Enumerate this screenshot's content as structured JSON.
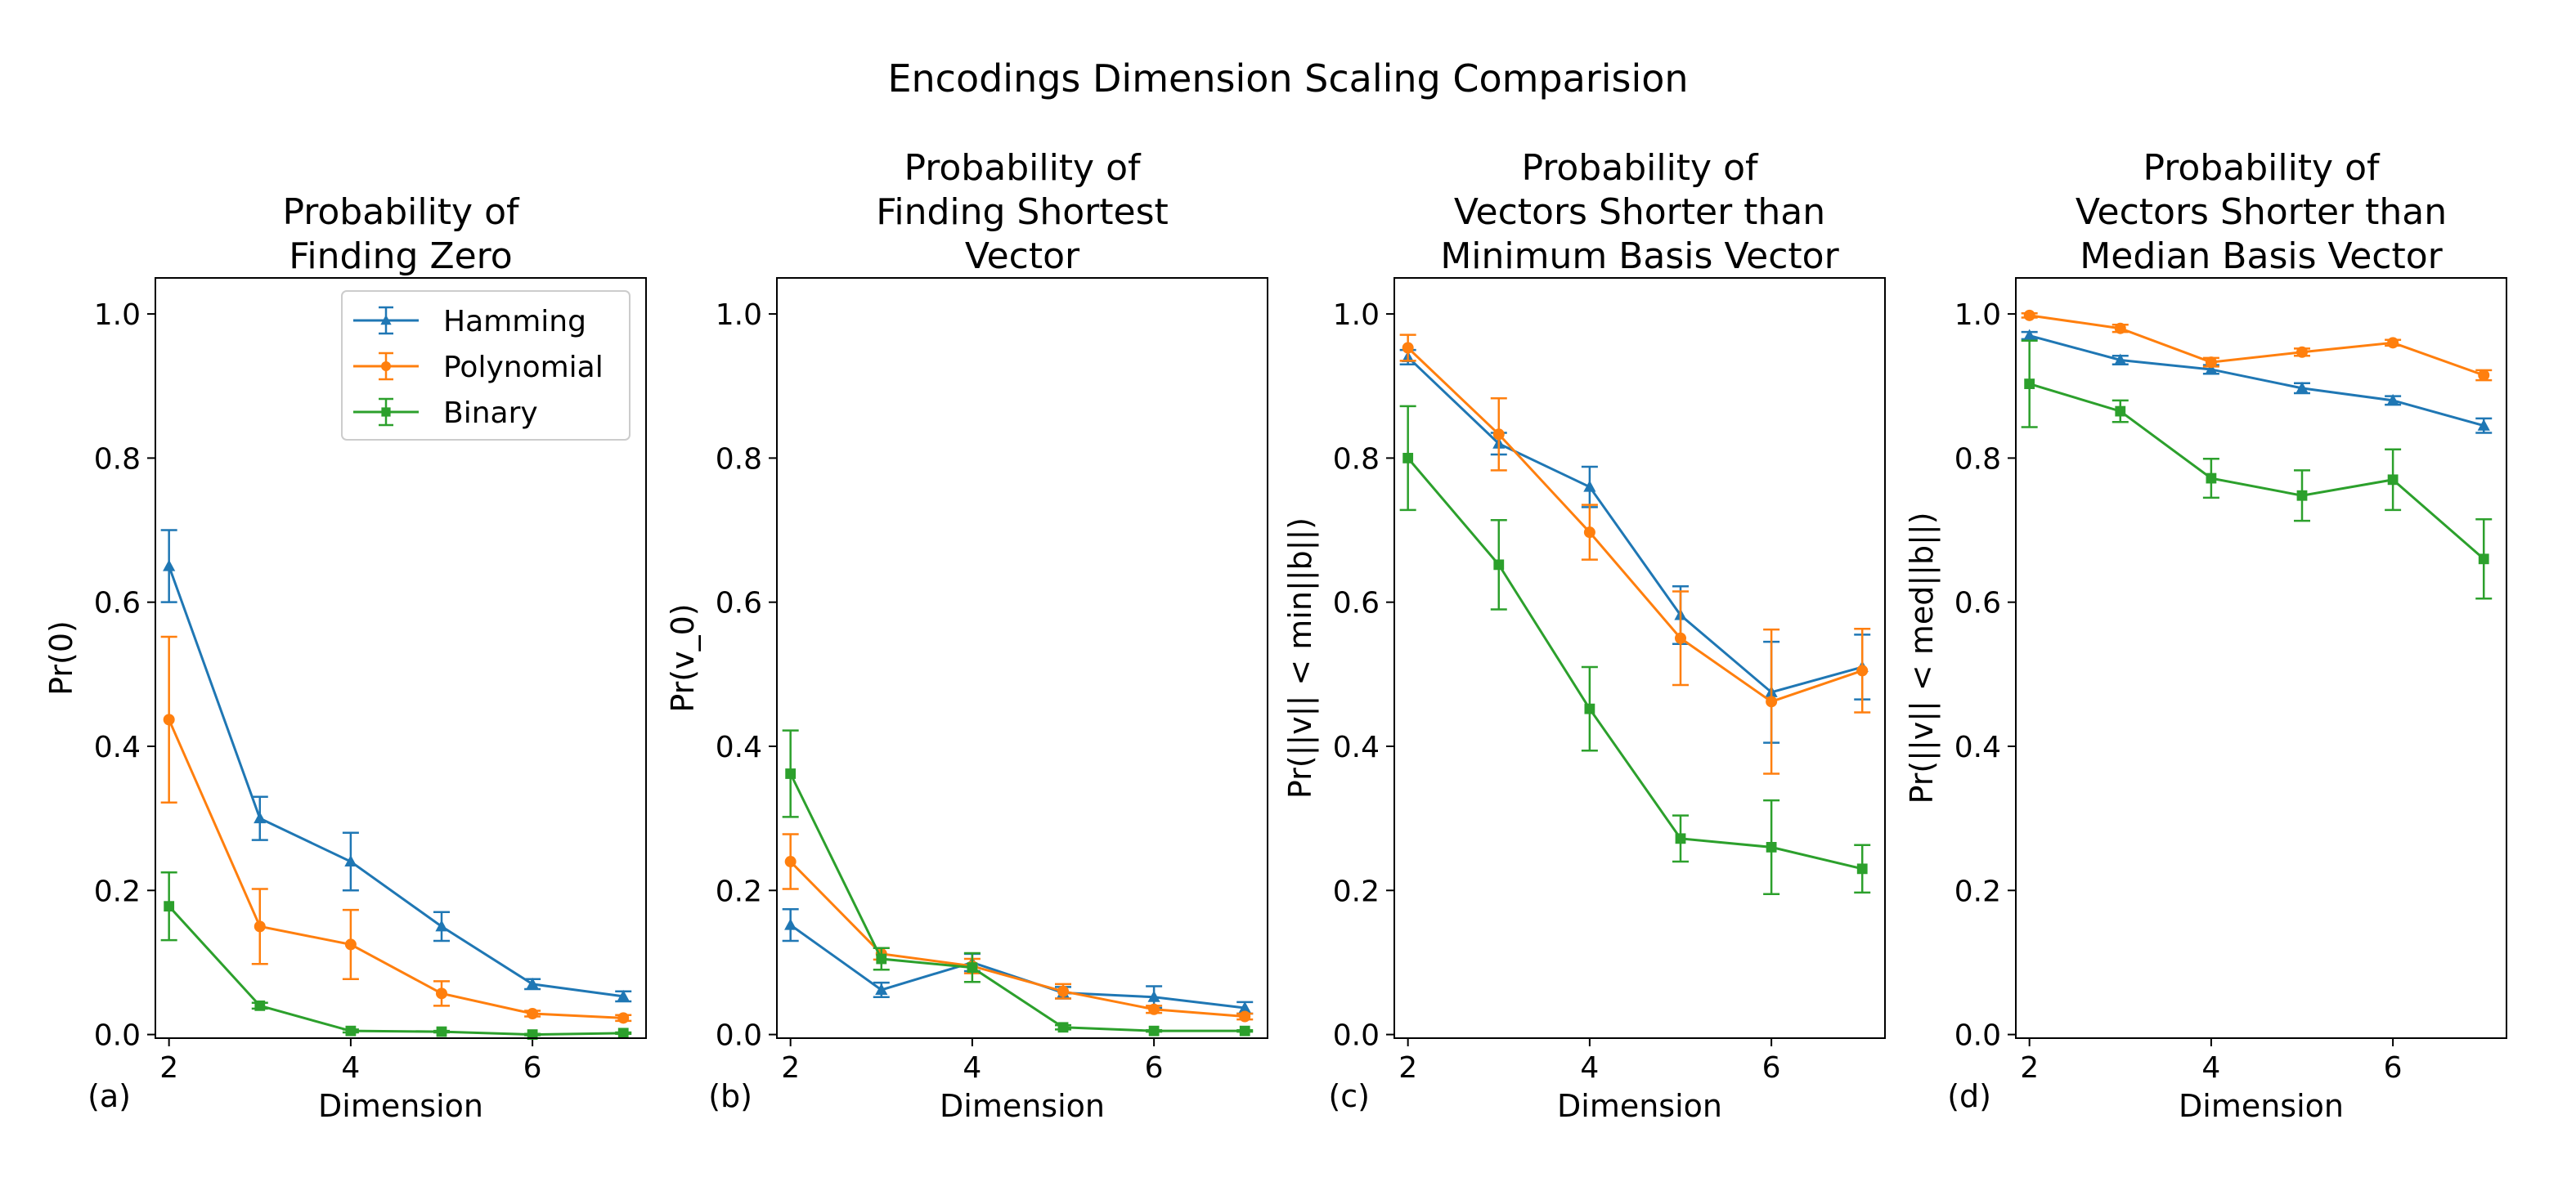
{
  "figure": {
    "title": "Encodings Dimension Scaling Comparision"
  },
  "colors": {
    "Hamming": "#1f77b4",
    "Polynomial": "#ff7f0e",
    "Binary": "#2ca02c"
  },
  "chart_data": [
    {
      "type": "line",
      "panel_label": "(a)",
      "title_lines": [
        "Probability of",
        "Finding Zero"
      ],
      "xlabel": "Dimension",
      "ylabel": "Pr(0)",
      "x": [
        2,
        3,
        4,
        5,
        6,
        7
      ],
      "xlim": [
        1.85,
        7.25
      ],
      "ylim": [
        -0.005,
        1.05
      ],
      "xticks": [
        2,
        4,
        6
      ],
      "yticks": [
        0.0,
        0.2,
        0.4,
        0.6,
        0.8,
        1.0
      ],
      "ytick_labels": [
        "0.0",
        "0.2",
        "0.4",
        "0.6",
        "0.8",
        "1.0"
      ],
      "legend": {
        "placement": "top-right",
        "entries": [
          "Hamming",
          "Polynomial",
          "Binary"
        ]
      },
      "series": [
        {
          "name": "Hamming",
          "marker": "triangle",
          "values": [
            0.65,
            0.3,
            0.24,
            0.15,
            0.07,
            0.053
          ],
          "errors": [
            0.05,
            0.03,
            0.04,
            0.02,
            0.007,
            0.007
          ]
        },
        {
          "name": "Polynomial",
          "marker": "circle",
          "values": [
            0.437,
            0.15,
            0.125,
            0.057,
            0.029,
            0.023
          ],
          "errors": [
            0.115,
            0.052,
            0.048,
            0.017,
            0.004,
            0.004
          ]
        },
        {
          "name": "Binary",
          "marker": "square",
          "values": [
            0.178,
            0.04,
            0.005,
            0.004,
            0.0,
            0.002
          ],
          "errors": [
            0.047,
            0.004,
            0.002,
            0.001,
            0.001,
            0.001
          ]
        }
      ]
    },
    {
      "type": "line",
      "panel_label": "(b)",
      "title_lines": [
        "Probability of",
        "Finding Shortest",
        "Vector"
      ],
      "xlabel": "Dimension",
      "ylabel": "Pr(v_0)",
      "x": [
        2,
        3,
        4,
        5,
        6,
        7
      ],
      "xlim": [
        1.85,
        7.25
      ],
      "ylim": [
        -0.005,
        1.05
      ],
      "xticks": [
        2,
        4,
        6
      ],
      "yticks": [
        0.0,
        0.2,
        0.4,
        0.6,
        0.8,
        1.0
      ],
      "ytick_labels": [
        "0.0",
        "0.2",
        "0.4",
        "0.6",
        "0.8",
        "1.0"
      ],
      "series": [
        {
          "name": "Hamming",
          "marker": "triangle",
          "values": [
            0.152,
            0.062,
            0.1,
            0.058,
            0.052,
            0.037
          ],
          "errors": [
            0.022,
            0.01,
            0.012,
            0.008,
            0.015,
            0.008
          ]
        },
        {
          "name": "Polynomial",
          "marker": "circle",
          "values": [
            0.24,
            0.112,
            0.095,
            0.06,
            0.035,
            0.025
          ],
          "errors": [
            0.038,
            0.008,
            0.01,
            0.01,
            0.005,
            0.004
          ]
        },
        {
          "name": "Binary",
          "marker": "square",
          "values": [
            0.362,
            0.105,
            0.093,
            0.01,
            0.005,
            0.005
          ],
          "errors": [
            0.06,
            0.015,
            0.02,
            0.003,
            0.001,
            0.001
          ]
        }
      ]
    },
    {
      "type": "line",
      "panel_label": "(c)",
      "title_lines": [
        "Probability of",
        "Vectors Shorter than",
        "Minimum Basis Vector"
      ],
      "xlabel": "Dimension",
      "ylabel": "Pr(||v|| < min||b||)",
      "x": [
        2,
        3,
        4,
        5,
        6,
        7
      ],
      "xlim": [
        1.85,
        7.25
      ],
      "ylim": [
        -0.005,
        1.05
      ],
      "xticks": [
        2,
        4,
        6
      ],
      "yticks": [
        0.0,
        0.2,
        0.4,
        0.6,
        0.8,
        1.0
      ],
      "ytick_labels": [
        "0.0",
        "0.2",
        "0.4",
        "0.6",
        "0.8",
        "1.0"
      ],
      "series": [
        {
          "name": "Hamming",
          "marker": "triangle",
          "values": [
            0.94,
            0.82,
            0.76,
            0.582,
            0.475,
            0.51
          ],
          "errors": [
            0.01,
            0.015,
            0.028,
            0.04,
            0.07,
            0.045
          ]
        },
        {
          "name": "Polynomial",
          "marker": "circle",
          "values": [
            0.953,
            0.833,
            0.697,
            0.55,
            0.462,
            0.505
          ],
          "errors": [
            0.018,
            0.05,
            0.038,
            0.065,
            0.1,
            0.058
          ]
        },
        {
          "name": "Binary",
          "marker": "square",
          "values": [
            0.8,
            0.652,
            0.452,
            0.272,
            0.26,
            0.23
          ],
          "errors": [
            0.072,
            0.062,
            0.058,
            0.032,
            0.065,
            0.033
          ]
        }
      ]
    },
    {
      "type": "line",
      "panel_label": "(d)",
      "title_lines": [
        "Probability of",
        "Vectors Shorter than",
        "Median Basis Vector"
      ],
      "xlabel": "Dimension",
      "ylabel": "Pr(||v|| < med||b||)",
      "x": [
        2,
        3,
        4,
        5,
        6,
        7
      ],
      "xlim": [
        1.85,
        7.25
      ],
      "ylim": [
        -0.005,
        1.05
      ],
      "xticks": [
        2,
        4,
        6
      ],
      "yticks": [
        0.0,
        0.2,
        0.4,
        0.6,
        0.8,
        1.0
      ],
      "ytick_labels": [
        "0.0",
        "0.2",
        "0.4",
        "0.6",
        "0.8",
        "1.0"
      ],
      "series": [
        {
          "name": "Hamming",
          "marker": "triangle",
          "values": [
            0.97,
            0.936,
            0.923,
            0.897,
            0.88,
            0.845
          ],
          "errors": [
            0.005,
            0.006,
            0.006,
            0.007,
            0.006,
            0.01
          ]
        },
        {
          "name": "Polynomial",
          "marker": "circle",
          "values": [
            0.998,
            0.98,
            0.933,
            0.947,
            0.96,
            0.915
          ],
          "errors": [
            0.003,
            0.005,
            0.006,
            0.005,
            0.004,
            0.007
          ]
        },
        {
          "name": "Binary",
          "marker": "square",
          "values": [
            0.903,
            0.865,
            0.772,
            0.748,
            0.77,
            0.66
          ],
          "errors": [
            0.06,
            0.015,
            0.027,
            0.035,
            0.042,
            0.055
          ]
        }
      ]
    }
  ]
}
